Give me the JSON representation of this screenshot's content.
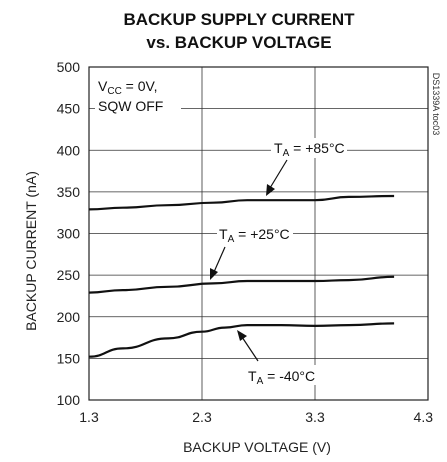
{
  "chart_data": {
    "type": "line",
    "title_line1": "BACKUP SUPPLY CURRENT",
    "title_line2": "vs. BACKUP VOLTAGE",
    "xlabel": "BACKUP VOLTAGE (V)",
    "ylabel": "BACKUP CURRENT (nA)",
    "xlim": [
      1.3,
      4.3
    ],
    "ylim": [
      100,
      500
    ],
    "x_ticks": [
      "1.3",
      "2.3",
      "3.3",
      "4.3"
    ],
    "x_tick_values": [
      1.3,
      2.3,
      3.3,
      4.3
    ],
    "y_ticks": [
      "100",
      "150",
      "200",
      "250",
      "300",
      "350",
      "400",
      "450",
      "500"
    ],
    "y_tick_values": [
      100,
      150,
      200,
      250,
      300,
      350,
      400,
      450,
      500
    ],
    "grid": true,
    "figure_id": "DS1339A toc03",
    "conditions": {
      "line1_main": "V",
      "line1_sub": "CC",
      "line1_rest": " = 0V,",
      "line2": "SQW OFF"
    },
    "series": [
      {
        "label_main": "T",
        "label_sub": "A",
        "label_rest": " = +85°C",
        "x": [
          1.3,
          1.6,
          2.0,
          2.4,
          2.7,
          3.0,
          3.3,
          3.6,
          4.0
        ],
        "y": [
          329,
          331,
          334,
          337,
          340,
          340,
          340,
          344,
          345
        ]
      },
      {
        "label_main": "T",
        "label_sub": "A",
        "label_rest": " = +25°C",
        "x": [
          1.3,
          1.6,
          2.0,
          2.4,
          2.7,
          3.0,
          3.3,
          3.6,
          4.0
        ],
        "y": [
          229,
          232,
          236,
          240,
          243,
          243,
          243,
          244,
          248
        ]
      },
      {
        "label_main": "T",
        "label_sub": "A",
        "label_rest": " = -40°C",
        "x": [
          1.3,
          1.6,
          2.0,
          2.3,
          2.5,
          2.7,
          3.0,
          3.3,
          3.6,
          4.0
        ],
        "y": [
          152,
          162,
          174,
          182,
          187,
          190,
          190,
          189,
          190,
          192
        ]
      }
    ]
  }
}
